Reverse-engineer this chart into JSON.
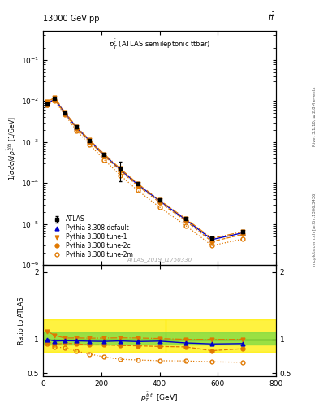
{
  "title_top": "13000 GeV pp",
  "title_top_right": "t$\\bar{t}$",
  "plot_title": "$p_T^{\\bar{t}}$ (ATLAS semileptonic ttbar)",
  "xlabel": "$p_T^{\\bar{t}(t)}$ [GeV]",
  "ylabel_main": "$1 / \\sigma\\, d\\sigma / d\\, p_T^{\\bar{t}(t)}$ [1/GeV]",
  "ylabel_ratio": "Ratio to ATLAS",
  "watermark": "ATLAS_2019_I1750330",
  "right_label": "Rivet 3.1.10, ≥ 2.8M events",
  "right_label2": "mcplots.cern.ch [arXiv:1306.3436]",
  "atlas_x": [
    15,
    40,
    75,
    115,
    160,
    210,
    265,
    325,
    400,
    490,
    580,
    685
  ],
  "atlas_y": [
    0.0085,
    0.0115,
    0.0052,
    0.0023,
    0.0011,
    0.0005,
    0.00022,
    9.5e-05,
    3.8e-05,
    1.35e-05,
    4.5e-06,
    6.5e-06
  ],
  "atlas_yerr": [
    0.0005,
    0.0006,
    0.00025,
    0.00011,
    5.5e-05,
    2.5e-05,
    0.00011,
    4.5e-06,
    1.8e-06,
    6.5e-07,
    2e-07,
    4e-07
  ],
  "py_default_x": [
    15,
    40,
    75,
    115,
    160,
    210,
    265,
    325,
    400,
    490,
    580,
    685
  ],
  "py_default_y": [
    0.0085,
    0.0112,
    0.0051,
    0.00225,
    0.00107,
    0.000485,
    0.000215,
    9.2e-05,
    3.7e-05,
    1.28e-05,
    4.2e-06,
    6.1e-06
  ],
  "py_tune1_x": [
    15,
    40,
    75,
    115,
    160,
    210,
    265,
    325,
    400,
    490,
    580,
    685
  ],
  "py_tune1_y": [
    0.0095,
    0.0122,
    0.0053,
    0.00235,
    0.00112,
    0.00051,
    0.000225,
    9.7e-05,
    3.85e-05,
    1.35e-05,
    4.5e-06,
    6.5e-06
  ],
  "py_tune2c_x": [
    15,
    40,
    75,
    115,
    160,
    210,
    265,
    325,
    400,
    490,
    580,
    685
  ],
  "py_tune2c_y": [
    0.0082,
    0.0107,
    0.0049,
    0.00215,
    0.00101,
    0.00046,
    0.0002,
    8.6e-05,
    3.4e-05,
    1.2e-05,
    3.75e-06,
    5.6e-06
  ],
  "py_tune2m_x": [
    15,
    40,
    75,
    115,
    160,
    210,
    265,
    325,
    400,
    490,
    580,
    685
  ],
  "py_tune2m_y": [
    0.008,
    0.0102,
    0.00455,
    0.0019,
    0.00086,
    0.00037,
    0.000155,
    6.6e-05,
    2.6e-05,
    9.2e-06,
    3e-06,
    4.3e-06
  ],
  "ratio_default": [
    1.0,
    0.975,
    0.98,
    0.978,
    0.973,
    0.97,
    0.977,
    0.968,
    0.974,
    0.948,
    0.933,
    0.938
  ],
  "ratio_tune1": [
    1.12,
    1.06,
    1.02,
    1.022,
    1.018,
    1.02,
    1.023,
    1.021,
    1.013,
    1.0,
    1.0,
    1.0
  ],
  "ratio_tune2c": [
    0.965,
    0.93,
    0.942,
    0.935,
    0.918,
    0.92,
    0.909,
    0.905,
    0.895,
    0.889,
    0.833,
    0.862
  ],
  "ratio_tune2m": [
    0.94,
    0.887,
    0.875,
    0.826,
    0.782,
    0.74,
    0.705,
    0.695,
    0.684,
    0.681,
    0.667,
    0.662
  ],
  "color_atlas": "#000000",
  "color_default": "#0000cc",
  "color_tune1": "#e07800",
  "color_tune2c": "#e07800",
  "color_tune2m": "#e07800",
  "band_yellow_lo": 0.82,
  "band_yellow_hi": 1.3,
  "band_green_lo": 0.92,
  "band_green_hi": 1.1,
  "ylim_main": [
    1e-06,
    0.5
  ],
  "ylim_ratio": [
    0.45,
    2.1
  ],
  "xlim": [
    0,
    800
  ]
}
